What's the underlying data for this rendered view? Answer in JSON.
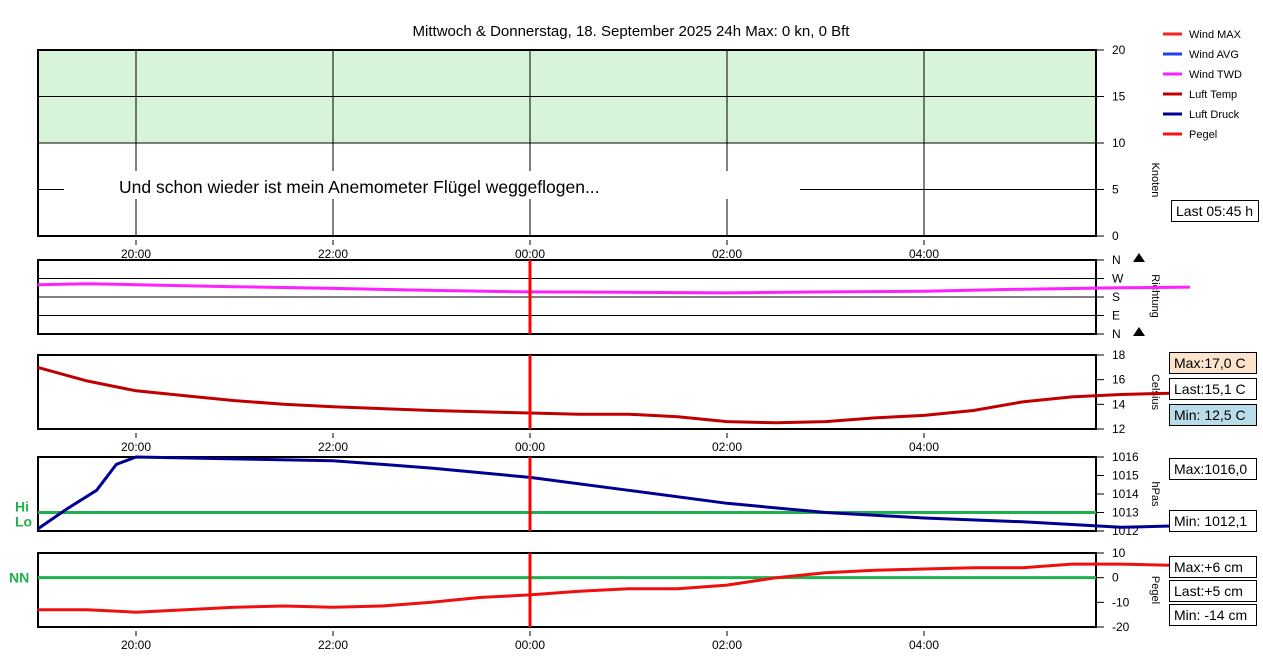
{
  "title": "Mittwoch & Donnerstag, 18. September 2025 24h Max: 0 kn, 0 Bft",
  "annotation": "Und schon wieder ist mein Anemometer Flügel weggeflogen...",
  "legend": [
    {
      "label": "Wind MAX",
      "color": "#ff2020"
    },
    {
      "label": "Wind AVG",
      "color": "#2040ff"
    },
    {
      "label": "Wind TWD",
      "color": "#ff20ff"
    },
    {
      "label": "Luft Temp",
      "color": "#c00000"
    },
    {
      "label": "Luft Druck",
      "color": "#000090"
    },
    {
      "label": "Pegel",
      "color": "#ff1010"
    }
  ],
  "info": {
    "last_update": "Last 05:45 h",
    "temp_max": "Max:17,0 C",
    "temp_last": "Last:15,1 C",
    "temp_min": "Min: 12,5 C",
    "press_max": "Max:1016,0",
    "press_min": "Min: 1012,1",
    "level_max": "Max:+6 cm",
    "level_last": "Last:+5 cm",
    "level_min": "Min: -14 cm"
  },
  "ref_labels": {
    "hi": "Hi",
    "lo": "Lo",
    "nn": "NN"
  },
  "colors": {
    "green_band": "#d8f4d8",
    "ref_line": "#20b050",
    "marker": "#ff0000"
  },
  "chart_data": [
    {
      "type": "line",
      "name": "wind",
      "ylabel": "Knoten",
      "ylim": [
        0,
        20
      ],
      "yticks": [
        "0",
        "5",
        "10",
        "15",
        "20"
      ],
      "green_band": [
        10,
        20
      ],
      "x_ticks": [
        "20:00",
        "22:00",
        "00:00",
        "02:00",
        "04:00"
      ],
      "series": []
    },
    {
      "type": "line",
      "name": "direction",
      "ylabel": "Richtung",
      "yticks": [
        "N",
        "W",
        "S",
        "E",
        "N"
      ],
      "series": [
        {
          "name": "Wind TWD",
          "x": [
            -1,
            -0.5,
            0,
            0.5,
            1,
            2,
            3,
            4,
            5,
            6,
            7,
            8,
            9,
            10,
            10.7
          ],
          "y": [
            240,
            244,
            240,
            235,
            230,
            222,
            212,
            205,
            203,
            200,
            205,
            208,
            218,
            225,
            228
          ]
        }
      ]
    },
    {
      "type": "line",
      "name": "temperature",
      "ylabel": "Celsius",
      "ylim": [
        12,
        18
      ],
      "yticks": [
        "12",
        "14",
        "16",
        "18"
      ],
      "x_ticks": [
        "20:00",
        "22:00",
        "00:00",
        "02:00",
        "04:00"
      ],
      "series": [
        {
          "name": "Luft Temp",
          "x": [
            -1,
            -0.5,
            0,
            0.5,
            1,
            1.5,
            2,
            3,
            4,
            4.5,
            5,
            5.5,
            6,
            6.5,
            7,
            7.5,
            8,
            8.5,
            9,
            9.5,
            10,
            10.5,
            10.7
          ],
          "y": [
            17.0,
            15.9,
            15.1,
            14.7,
            14.3,
            14.0,
            13.8,
            13.5,
            13.3,
            13.2,
            13.2,
            13.0,
            12.6,
            12.5,
            12.6,
            12.9,
            13.1,
            13.5,
            14.2,
            14.6,
            14.8,
            14.9,
            15.1
          ]
        }
      ]
    },
    {
      "type": "line",
      "name": "pressure",
      "ylabel": "hPas",
      "ylim": [
        1012,
        1016
      ],
      "yticks": [
        "1012",
        "1013",
        "1014",
        "1015",
        "1016"
      ],
      "reference": 1013,
      "series": [
        {
          "name": "Luft Druck",
          "x": [
            -1,
            -0.7,
            -0.4,
            -0.2,
            0,
            1,
            2,
            3,
            4,
            5,
            6,
            7,
            8,
            9,
            10,
            10.7
          ],
          "y": [
            1012.1,
            1013.2,
            1014.2,
            1015.6,
            1016.0,
            1015.9,
            1015.8,
            1015.4,
            1014.9,
            1014.2,
            1013.5,
            1013.0,
            1012.7,
            1012.5,
            1012.2,
            1012.3
          ]
        }
      ]
    },
    {
      "type": "line",
      "name": "level",
      "ylabel": "Pegel",
      "ylim": [
        -20,
        10
      ],
      "yticks": [
        "-20",
        "-10",
        "0",
        "10"
      ],
      "reference": 0,
      "x_ticks": [
        "20:00",
        "22:00",
        "00:00",
        "02:00",
        "04:00"
      ],
      "series": [
        {
          "name": "Pegel",
          "x": [
            -1,
            -0.5,
            0,
            0.5,
            1,
            1.5,
            2,
            2.5,
            3,
            3.5,
            4,
            4.5,
            5,
            5.5,
            6,
            6.5,
            7,
            7.5,
            8,
            8.5,
            9,
            9.5,
            10,
            10.5,
            10.7
          ],
          "y": [
            -13,
            -13,
            -14,
            -13,
            -12,
            -11.5,
            -12,
            -11.5,
            -10,
            -8,
            -7,
            -5.5,
            -4.5,
            -4.5,
            -3,
            0,
            2,
            3,
            3.5,
            4,
            4,
            5.5,
            5.5,
            5,
            5
          ]
        }
      ]
    }
  ]
}
